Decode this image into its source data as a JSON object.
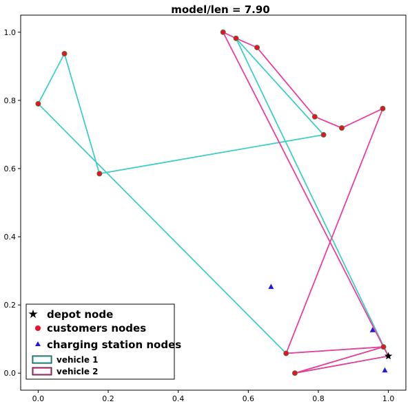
{
  "chart_data": {
    "type": "scatter",
    "title": "model/len = 7.90",
    "xlim": [
      -0.05,
      1.05
    ],
    "ylim": [
      -0.05,
      1.05
    ],
    "xticks": [
      "0.0",
      "0.2",
      "0.4",
      "0.6",
      "0.8",
      "1.0"
    ],
    "yticks": [
      "0.0",
      "0.2",
      "0.4",
      "0.6",
      "0.8",
      "1.0"
    ],
    "grid": false,
    "legend_position": "lower-left",
    "depot": {
      "name": "depot node",
      "point": [
        1.0,
        0.05
      ],
      "color": "#000000",
      "marker": "star"
    },
    "customers": {
      "name": "customers nodes",
      "color": "#e8102a",
      "edge_color": "#3a8a3a",
      "points": [
        [
          0.0,
          0.79
        ],
        [
          0.075,
          0.937
        ],
        [
          0.175,
          0.585
        ],
        [
          0.528,
          1.0
        ],
        [
          0.565,
          0.982
        ],
        [
          0.625,
          0.955
        ],
        [
          0.79,
          0.752
        ],
        [
          0.815,
          0.699
        ],
        [
          0.867,
          0.719
        ],
        [
          0.984,
          0.776
        ],
        [
          0.708,
          0.058
        ],
        [
          0.733,
          0.0
        ],
        [
          0.986,
          0.077
        ]
      ]
    },
    "charging_stations": {
      "name": "charging station nodes",
      "color": "#1a1ae0",
      "marker": "triangle",
      "points": [
        [
          0.665,
          0.253
        ],
        [
          0.955,
          0.126
        ],
        [
          0.99,
          0.008
        ]
      ]
    },
    "routes": [
      {
        "name": "vehicle 1",
        "color": "#3ecec8",
        "path": [
          [
            1.0,
            0.05
          ],
          [
            0.565,
            0.982
          ],
          [
            0.815,
            0.699
          ],
          [
            0.175,
            0.585
          ],
          [
            0.075,
            0.937
          ],
          [
            0.0,
            0.79
          ],
          [
            0.708,
            0.058
          ],
          [
            0.986,
            0.077
          ],
          [
            0.733,
            0.0
          ],
          [
            1.0,
            0.05
          ]
        ]
      },
      {
        "name": "vehicle 2",
        "color": "#ee3d9c",
        "path": [
          [
            1.0,
            0.05
          ],
          [
            0.733,
            0.0
          ],
          [
            0.986,
            0.077
          ],
          [
            0.708,
            0.058
          ],
          [
            0.984,
            0.776
          ],
          [
            0.867,
            0.719
          ],
          [
            0.79,
            0.752
          ],
          [
            0.625,
            0.955
          ],
          [
            0.565,
            0.982
          ],
          [
            0.528,
            1.0
          ],
          [
            0.986,
            0.077
          ],
          [
            1.0,
            0.05
          ]
        ]
      }
    ]
  }
}
